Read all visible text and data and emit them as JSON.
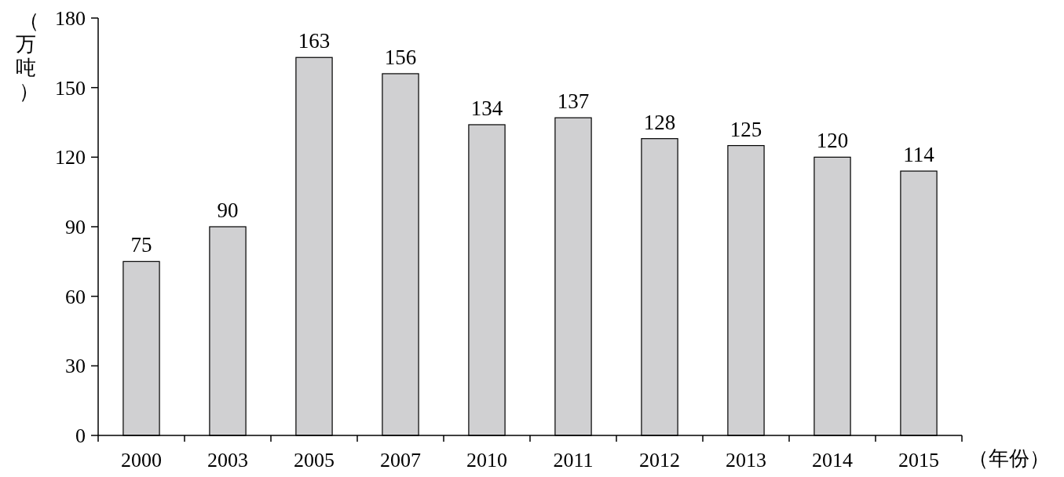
{
  "chart_data": {
    "type": "bar",
    "xlabel": "（年份）",
    "ylabel": "（万吨）",
    "categories": [
      "2000",
      "2003",
      "2005",
      "2007",
      "2010",
      "2011",
      "2012",
      "2013",
      "2014",
      "2015"
    ],
    "values": [
      75,
      90,
      163,
      156,
      134,
      137,
      128,
      125,
      120,
      114
    ],
    "color": "#d0d0d2",
    "ylim": [
      0,
      180
    ],
    "yticks": [
      0,
      30,
      60,
      90,
      120,
      150,
      180
    ],
    "data_labels": true
  }
}
